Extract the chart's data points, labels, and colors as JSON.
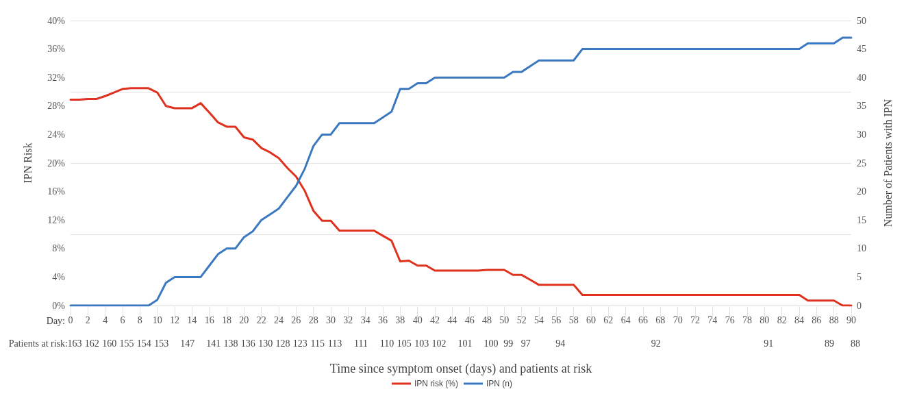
{
  "chart_data": {
    "type": "line",
    "xlabel": "Time since symptom onset (days) and patients at risk",
    "ylabel": "IPN Risk",
    "y2label": "Number of Patients with IPN",
    "x": [
      0,
      1,
      2,
      3,
      4,
      5,
      6,
      7,
      8,
      9,
      10,
      11,
      12,
      13,
      14,
      15,
      16,
      17,
      18,
      19,
      20,
      21,
      22,
      23,
      24,
      25,
      26,
      27,
      28,
      29,
      30,
      31,
      32,
      33,
      34,
      35,
      36,
      37,
      38,
      39,
      40,
      41,
      42,
      43,
      44,
      45,
      46,
      47,
      48,
      49,
      50,
      51,
      52,
      53,
      54,
      55,
      56,
      57,
      58,
      59,
      60,
      61,
      62,
      63,
      64,
      65,
      66,
      67,
      68,
      69,
      70,
      71,
      72,
      73,
      74,
      75,
      76,
      77,
      78,
      79,
      80,
      81,
      82,
      83,
      84,
      85,
      86,
      87,
      88,
      89,
      90
    ],
    "series": [
      {
        "name": "IPN risk (%)",
        "color": "#e0301e",
        "values": [
          28.9,
          28.9,
          29.0,
          29.0,
          29.4,
          29.9,
          30.4,
          30.5,
          30.5,
          30.5,
          29.9,
          28.0,
          27.7,
          27.7,
          27.7,
          28.4,
          27.1,
          25.7,
          25.1,
          25.1,
          23.6,
          23.3,
          22.1,
          21.5,
          20.7,
          19.3,
          18.1,
          16.1,
          13.3,
          11.9,
          11.9,
          10.5,
          10.5,
          10.5,
          10.5,
          10.5,
          9.8,
          9.1,
          6.2,
          6.3,
          5.6,
          5.6,
          4.9,
          4.9,
          4.9,
          4.9,
          4.9,
          4.9,
          5.0,
          5.0,
          5.0,
          4.3,
          4.3,
          3.6,
          2.9,
          2.9,
          2.9,
          2.9,
          2.9,
          1.5,
          1.5,
          1.5,
          1.5,
          1.5,
          1.5,
          1.5,
          1.5,
          1.5,
          1.5,
          1.5,
          1.5,
          1.5,
          1.5,
          1.5,
          1.5,
          1.5,
          1.5,
          1.5,
          1.5,
          1.5,
          1.5,
          1.5,
          1.5,
          1.5,
          1.5,
          0.7,
          0.7,
          0.7,
          0.7,
          0,
          0
        ]
      },
      {
        "name": "IPN (n)",
        "color": "#3a78c0",
        "axis": "y2",
        "values": [
          0,
          0,
          0,
          0,
          0,
          0,
          0,
          0,
          0,
          0,
          1,
          4,
          5,
          5,
          5,
          5,
          7,
          9,
          10,
          10,
          12,
          13,
          15,
          16,
          17,
          19,
          21,
          24,
          28,
          30,
          30,
          32,
          32,
          32,
          32,
          32,
          33,
          34,
          38,
          38,
          39,
          39,
          40,
          40,
          40,
          40,
          40,
          40,
          40,
          40,
          40,
          41,
          41,
          42,
          43,
          43,
          43,
          43,
          43,
          45,
          45,
          45,
          45,
          45,
          45,
          45,
          45,
          45,
          45,
          45,
          45,
          45,
          45,
          45,
          45,
          45,
          45,
          45,
          45,
          45,
          45,
          45,
          45,
          45,
          45,
          46,
          46,
          46,
          46,
          47,
          47
        ]
      }
    ],
    "xlim": [
      0,
      90
    ],
    "xticks": [
      0,
      2,
      4,
      6,
      8,
      10,
      12,
      14,
      16,
      18,
      20,
      22,
      24,
      26,
      28,
      30,
      32,
      34,
      36,
      38,
      40,
      42,
      44,
      46,
      48,
      50,
      52,
      54,
      56,
      58,
      60,
      62,
      64,
      66,
      68,
      70,
      72,
      74,
      76,
      78,
      80,
      82,
      84,
      86,
      88,
      90
    ],
    "ylim": [
      0,
      40
    ],
    "yticks": [
      {
        "value": 0,
        "label": "0%"
      },
      {
        "value": 4,
        "label": "4%"
      },
      {
        "value": 8,
        "label": "8%"
      },
      {
        "value": 12,
        "label": "12%"
      },
      {
        "value": 16,
        "label": "16%"
      },
      {
        "value": 20,
        "label": "20%"
      },
      {
        "value": 24,
        "label": "24%"
      },
      {
        "value": 28,
        "label": "28%"
      },
      {
        "value": 32,
        "label": "32%"
      },
      {
        "value": 36,
        "label": "36%"
      },
      {
        "value": 40,
        "label": "40%"
      }
    ],
    "y2lim": [
      0,
      50
    ],
    "y2ticks": [
      0,
      5,
      10,
      15,
      20,
      25,
      30,
      35,
      40,
      45,
      50
    ],
    "grid": "y",
    "legend": "bottom",
    "marker": "none",
    "line_style": "solid",
    "annotations": [
      "Day:",
      "Patients at risk:",
      "163",
      "162",
      "160",
      "155",
      "154",
      "153",
      "147",
      "141",
      "138",
      "136",
      "130",
      "128",
      "123",
      "115",
      "113",
      "111",
      "110",
      "105",
      "103",
      "102",
      "101",
      "100",
      "99",
      "97",
      "94",
      "92",
      "91",
      "89",
      "88"
    ]
  }
}
